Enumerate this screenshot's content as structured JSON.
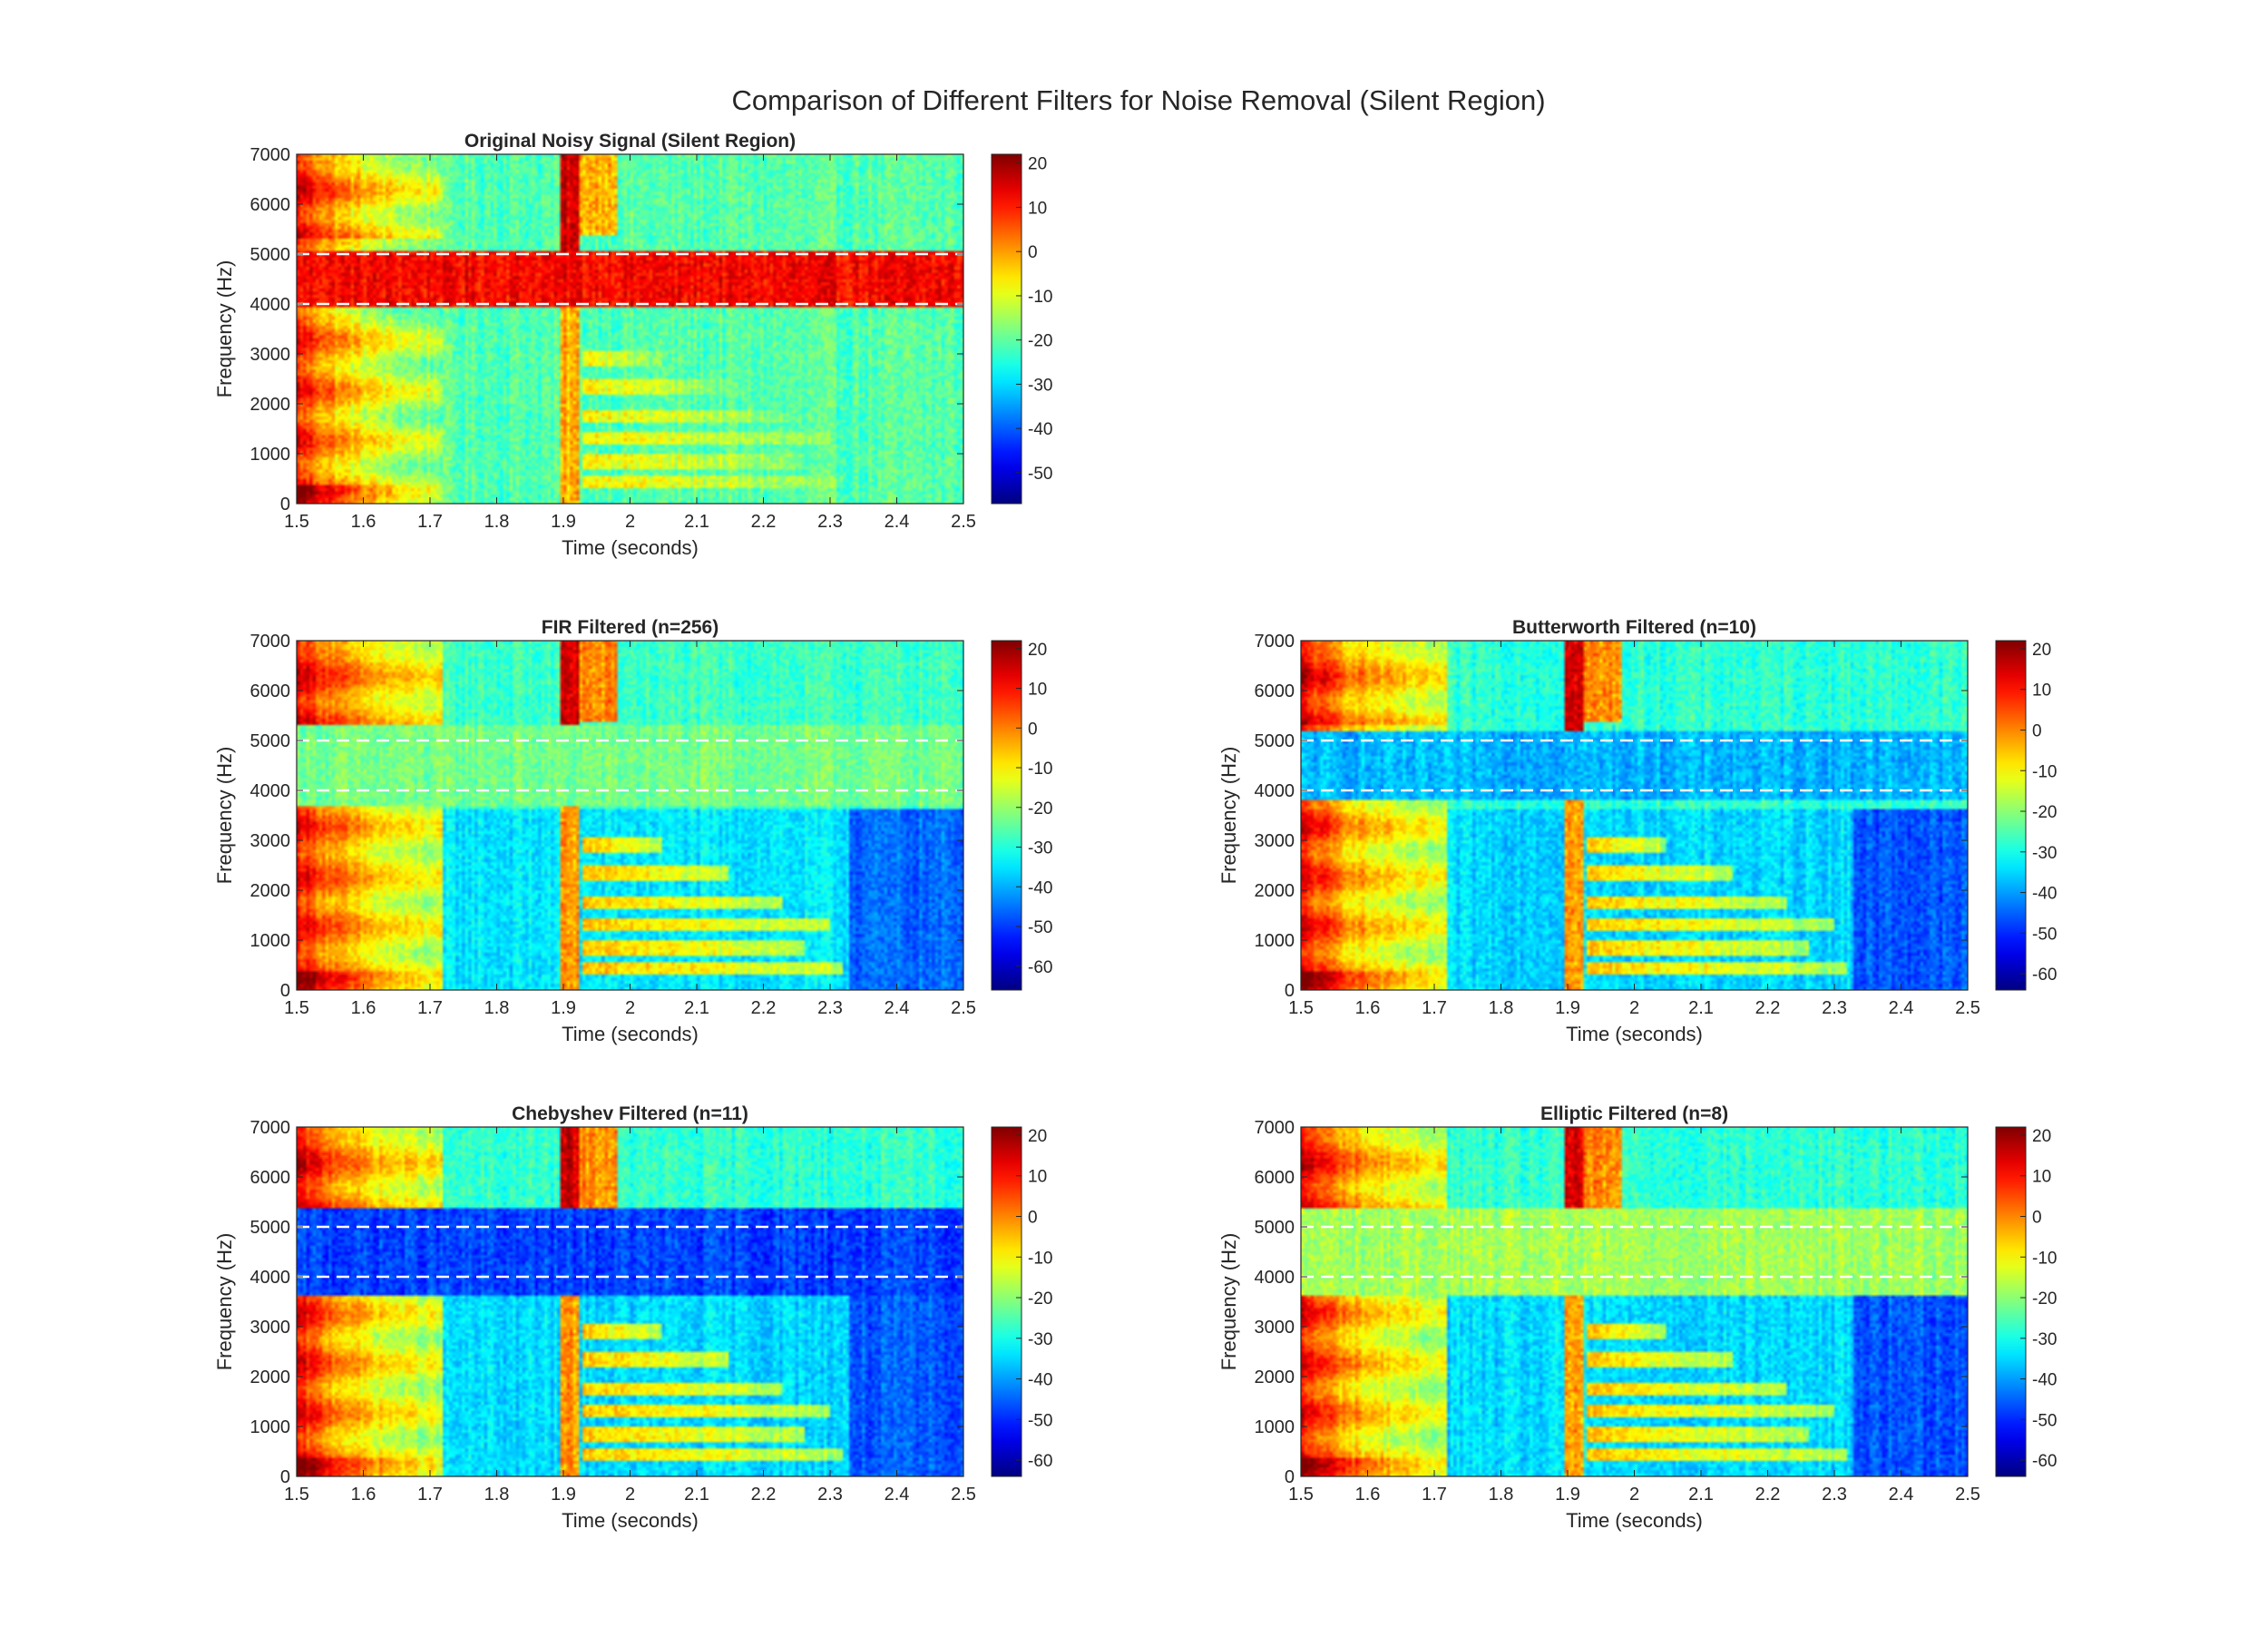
{
  "figure": {
    "title": "Comparison of Different Filters for Noise Removal (Silent Region)"
  },
  "colors": {
    "colormap": "jet",
    "reference_line": "#ffffff",
    "axes_frame": "#262626",
    "background": "#ffffff"
  },
  "chart_data": [
    {
      "type": "heatmap",
      "title": "Original Noisy Signal (Silent Region)",
      "xlabel": "Time (seconds)",
      "ylabel": "Frequency (Hz)",
      "xlim": [
        1.5,
        2.5
      ],
      "ylim": [
        0,
        7000
      ],
      "x_ticks": [
        1.5,
        1.6,
        1.7,
        1.8,
        1.9,
        2,
        2.1,
        2.2,
        2.3,
        2.4,
        2.5
      ],
      "y_ticks": [
        0,
        1000,
        2000,
        3000,
        4000,
        5000,
        6000,
        7000
      ],
      "colorbar": {
        "range": [
          -57,
          22
        ],
        "ticks": [
          20,
          10,
          0,
          -10,
          -20,
          -30,
          -40,
          -50
        ]
      },
      "reference_lines_hz": [
        4000,
        5000
      ],
      "noise_band_hz": [
        3950,
        5050
      ],
      "noise_band_level_db": 12,
      "grid": false,
      "legend": "none"
    },
    {
      "type": "heatmap",
      "title": "FIR Filtered (n=256)",
      "xlabel": "Time (seconds)",
      "ylabel": "Frequency (Hz)",
      "xlim": [
        1.5,
        2.5
      ],
      "ylim": [
        0,
        7000
      ],
      "x_ticks": [
        1.5,
        1.6,
        1.7,
        1.8,
        1.9,
        2,
        2.1,
        2.2,
        2.3,
        2.4,
        2.5
      ],
      "y_ticks": [
        0,
        1000,
        2000,
        3000,
        4000,
        5000,
        6000,
        7000
      ],
      "colorbar": {
        "range": [
          -66,
          22
        ],
        "ticks": [
          20,
          10,
          0,
          -10,
          -20,
          -30,
          -40,
          -50,
          -60
        ]
      },
      "reference_lines_hz": [
        4000,
        5000
      ],
      "noise_band_hz": [
        3700,
        5300
      ],
      "noise_band_level_db": -23,
      "grid": false,
      "legend": "none"
    },
    {
      "type": "heatmap",
      "title": "Butterworth Filtered (n=10)",
      "xlabel": "Time (seconds)",
      "ylabel": "Frequency (Hz)",
      "xlim": [
        1.5,
        2.5
      ],
      "ylim": [
        0,
        7000
      ],
      "x_ticks": [
        1.5,
        1.6,
        1.7,
        1.8,
        1.9,
        2,
        2.1,
        2.2,
        2.3,
        2.4,
        2.5
      ],
      "y_ticks": [
        0,
        1000,
        2000,
        3000,
        4000,
        5000,
        6000,
        7000
      ],
      "colorbar": {
        "range": [
          -64,
          22
        ],
        "ticks": [
          20,
          10,
          0,
          -10,
          -20,
          -30,
          -40,
          -50,
          -60
        ]
      },
      "reference_lines_hz": [
        4000,
        5000
      ],
      "noise_band_hz": [
        3800,
        5200
      ],
      "noise_band_level_db": -38,
      "grid": false,
      "legend": "none"
    },
    {
      "type": "heatmap",
      "title": "Chebyshev Filtered (n=11)",
      "xlabel": "Time (seconds)",
      "ylabel": "Frequency (Hz)",
      "xlim": [
        1.5,
        2.5
      ],
      "ylim": [
        0,
        7000
      ],
      "x_ticks": [
        1.5,
        1.6,
        1.7,
        1.8,
        1.9,
        2,
        2.1,
        2.2,
        2.3,
        2.4,
        2.5
      ],
      "y_ticks": [
        0,
        1000,
        2000,
        3000,
        4000,
        5000,
        6000,
        7000
      ],
      "colorbar": {
        "range": [
          -64,
          22
        ],
        "ticks": [
          20,
          10,
          0,
          -10,
          -20,
          -30,
          -40,
          -50,
          -60
        ]
      },
      "reference_lines_hz": [
        4000,
        5000
      ],
      "noise_band_hz": [
        3650,
        5400
      ],
      "noise_band_level_db": -48,
      "grid": false,
      "legend": "none"
    },
    {
      "type": "heatmap",
      "title": "Elliptic Filtered (n=8)",
      "xlabel": "Time (seconds)",
      "ylabel": "Frequency (Hz)",
      "xlim": [
        1.5,
        2.5
      ],
      "ylim": [
        0,
        7000
      ],
      "x_ticks": [
        1.5,
        1.6,
        1.7,
        1.8,
        1.9,
        2,
        2.1,
        2.2,
        2.3,
        2.4,
        2.5
      ],
      "y_ticks": [
        0,
        1000,
        2000,
        3000,
        4000,
        5000,
        6000,
        7000
      ],
      "colorbar": {
        "range": [
          -64,
          22
        ],
        "ticks": [
          20,
          10,
          0,
          -10,
          -20,
          -30,
          -40,
          -50,
          -60
        ]
      },
      "reference_lines_hz": [
        4000,
        5000
      ],
      "noise_band_hz": [
        3600,
        5400
      ],
      "noise_band_level_db": -18,
      "grid": false,
      "legend": "none"
    }
  ]
}
